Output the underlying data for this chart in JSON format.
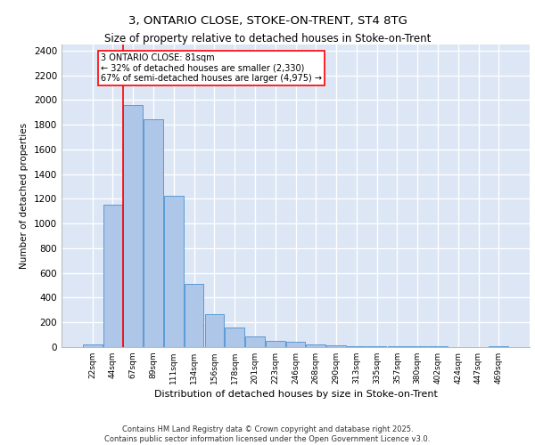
{
  "title1": "3, ONTARIO CLOSE, STOKE-ON-TRENT, ST4 8TG",
  "title2": "Size of property relative to detached houses in Stoke-on-Trent",
  "xlabel": "Distribution of detached houses by size in Stoke-on-Trent",
  "ylabel": "Number of detached properties",
  "categories": [
    "22sqm",
    "44sqm",
    "67sqm",
    "89sqm",
    "111sqm",
    "134sqm",
    "156sqm",
    "178sqm",
    "201sqm",
    "223sqm",
    "246sqm",
    "268sqm",
    "290sqm",
    "313sqm",
    "335sqm",
    "357sqm",
    "380sqm",
    "402sqm",
    "424sqm",
    "447sqm",
    "469sqm"
  ],
  "values": [
    25,
    1155,
    1960,
    1845,
    1225,
    515,
    270,
    155,
    90,
    50,
    40,
    25,
    15,
    10,
    5,
    5,
    5,
    5,
    0,
    0,
    5
  ],
  "bar_color": "#aec6e8",
  "bar_edge_color": "#5b9bd5",
  "bg_color": "#dce6f5",
  "grid_color": "#ffffff",
  "annotation_text": "3 ONTARIO CLOSE: 81sqm\n← 32% of detached houses are smaller (2,330)\n67% of semi-detached houses are larger (4,975) →",
  "vline_index": 2,
  "footer": "Contains HM Land Registry data © Crown copyright and database right 2025.\nContains public sector information licensed under the Open Government Licence v3.0.",
  "ylim": [
    0,
    2450
  ],
  "yticks": [
    0,
    200,
    400,
    600,
    800,
    1000,
    1200,
    1400,
    1600,
    1800,
    2000,
    2200,
    2400
  ]
}
